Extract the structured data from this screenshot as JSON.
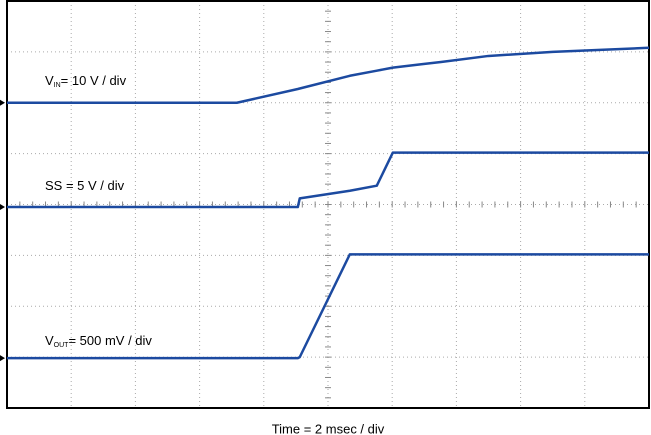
{
  "chart_data": {
    "type": "line",
    "x_label": "Time = 2 msec / div",
    "annotations": [
      {
        "main": "V",
        "sub": "IN",
        "rest": "= 10 V / div"
      },
      {
        "main": "SS",
        "sub": null,
        "rest": " = 5 V / div"
      },
      {
        "main": "V",
        "sub": "OUT",
        "rest": "= 500 mV / div"
      }
    ],
    "x": [
      0,
      3.58,
      4.53,
      4.56,
      5.34,
      5.76,
      6.01,
      6.47,
      6.76,
      7.5,
      8.5,
      10
    ],
    "series": [
      {
        "color": "#1c4aa0",
        "values": [
          6.0,
          6.0,
          6.27,
          6.28,
          6.53,
          6.63,
          6.69,
          6.76,
          6.8,
          6.92,
          7.0,
          7.08
        ]
      },
      {
        "color": "#1c4aa0",
        "values": [
          3.95,
          3.95,
          3.95,
          4.12,
          4.27,
          4.37,
          5.02,
          5.02,
          5.02,
          5.02,
          5.02,
          5.02
        ]
      },
      {
        "color": "#1c4aa0",
        "values": [
          0.98,
          0.98,
          0.98,
          1.0,
          3.02,
          3.02,
          3.02,
          3.02,
          3.02,
          3.02,
          3.02,
          3.02
        ]
      }
    ],
    "xlim": [
      0,
      10
    ],
    "ylim": [
      0,
      8
    ],
    "xticks": [
      0,
      1,
      2,
      3,
      4,
      5,
      6,
      7,
      8,
      9,
      10
    ],
    "yticks": [
      0,
      1,
      2,
      3,
      4,
      5,
      6,
      7,
      8
    ],
    "grid": true
  }
}
